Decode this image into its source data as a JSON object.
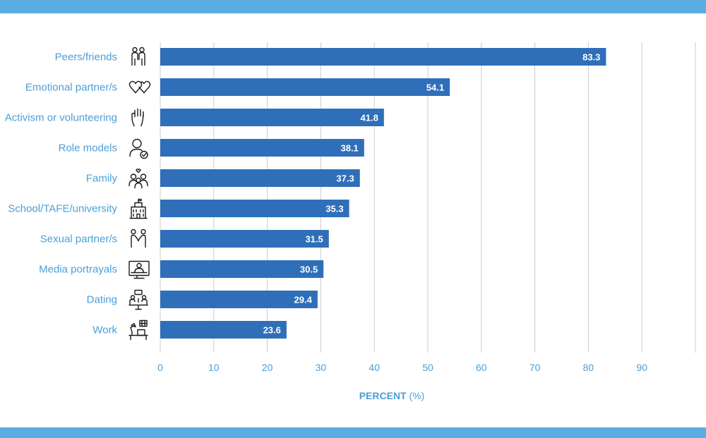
{
  "colors": {
    "band": "#5aade0",
    "bar": "#2f6fb9",
    "label_text": "#4a9fd8",
    "gridline": "#cccccc",
    "icon_stroke": "#1a1a1a"
  },
  "chart_data": {
    "type": "bar",
    "orientation": "horizontal",
    "categories": [
      "Peers/friends",
      "Emotional partner/s",
      "Activism or volunteering",
      "Role models",
      "Family",
      "School/TAFE/university",
      "Sexual partner/s",
      "Media portrayals",
      "Dating",
      "Work"
    ],
    "values": [
      83.3,
      54.1,
      41.8,
      38.1,
      37.3,
      35.3,
      31.5,
      30.5,
      29.4,
      23.6
    ],
    "data_labels": [
      "83.3",
      "54.1",
      "41.8",
      "38.1",
      "37.3",
      "35.3",
      "31.5",
      "30.5",
      "29.4",
      "23.6"
    ],
    "icons": [
      "two-people-icon",
      "two-hearts-icon",
      "raised-hand-icon",
      "person-check-icon",
      "family-icon",
      "school-building-icon",
      "couple-icon",
      "monitor-person-icon",
      "dating-table-icon",
      "desk-lamp-icon"
    ],
    "x_ticks": [
      "0",
      "10",
      "20",
      "30",
      "40",
      "50",
      "60",
      "70",
      "80",
      "90"
    ],
    "xlim": [
      0,
      100
    ],
    "xlabel": "PERCENT",
    "xlabel_unit": "(%)",
    "grid": "vertical",
    "legend": "none"
  }
}
